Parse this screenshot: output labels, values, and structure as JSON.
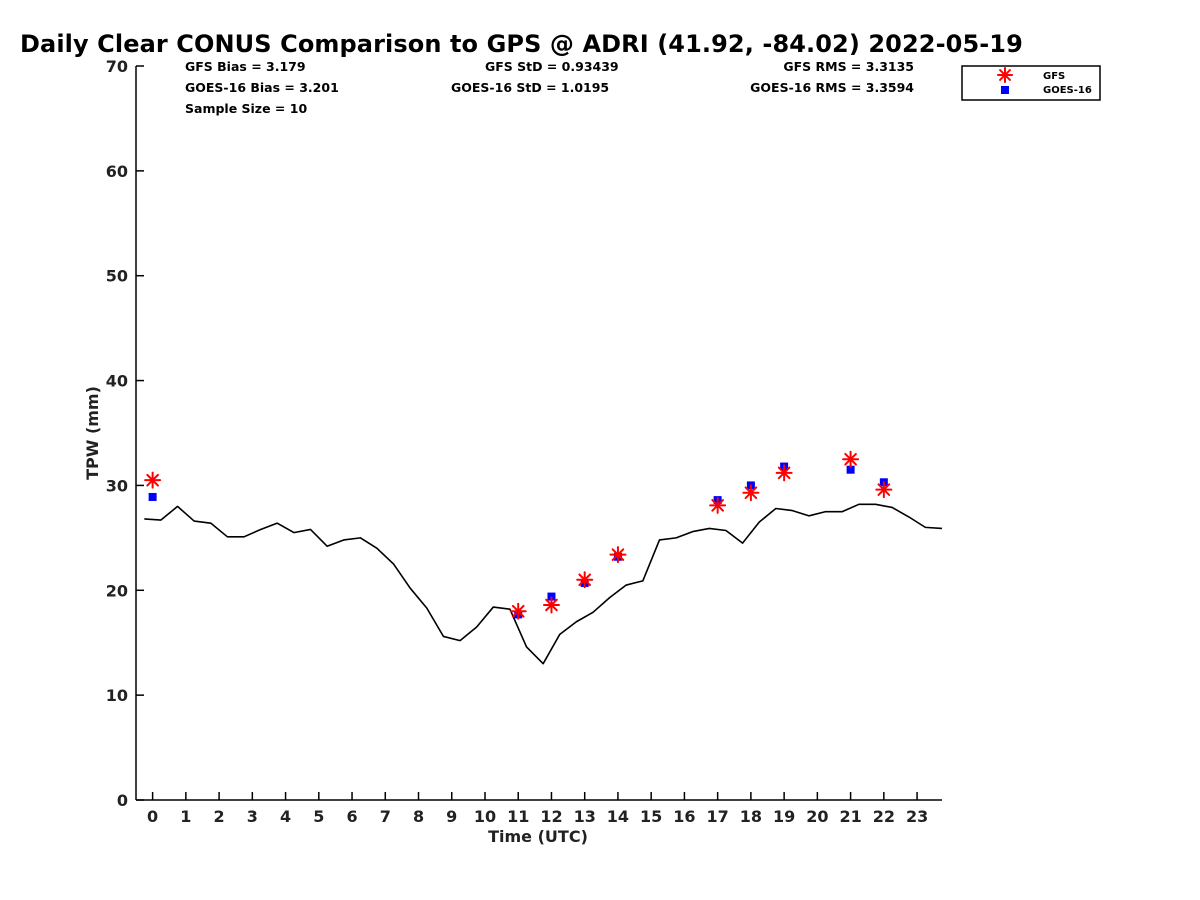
{
  "chart_title": "Daily Clear CONUS Comparison to GPS @ ADRI (41.92, -84.02) 2022-05-19",
  "stats": {
    "gfs_bias": "GFS Bias = 3.179",
    "goes_bias": "GOES-16 Bias = 3.201",
    "sample_size": "Sample Size = 10",
    "gfs_std": "GFS StD = 0.93439",
    "goes_std": "GOES-16 StD = 1.0195",
    "gfs_rms": "GFS RMS = 3.3135",
    "goes_rms": "GOES-16 RMS = 3.3594"
  },
  "legend": {
    "gfs_label": "GFS",
    "goes_label": "GOES-16"
  },
  "colors": {
    "gps_line": "#000000",
    "gfs_marker": "#ff0000",
    "goes_marker": "#0000ff"
  },
  "chart_data": {
    "type": "scatter",
    "title": "Daily Clear CONUS Comparison to GPS @ ADRI (41.92, -84.02) 2022-05-19",
    "xlabel": "Time (UTC)",
    "ylabel": "TPW (mm)",
    "xlim": [
      -0.5,
      23.75
    ],
    "ylim": [
      0,
      70
    ],
    "xticks": [
      0,
      1,
      2,
      3,
      4,
      5,
      6,
      7,
      8,
      9,
      10,
      11,
      12,
      13,
      14,
      15,
      16,
      17,
      18,
      19,
      20,
      21,
      22,
      23
    ],
    "yticks": [
      0,
      10,
      20,
      30,
      40,
      50,
      60,
      70
    ],
    "grid": false,
    "legend_position": "top-right",
    "gps_line": {
      "x": [
        -0.25,
        0.25,
        0.75,
        1.25,
        1.75,
        2.25,
        2.75,
        3.25,
        3.75,
        4.25,
        4.75,
        5.25,
        5.75,
        6.25,
        6.75,
        7.25,
        7.75,
        8.25,
        8.75,
        9.25,
        9.75,
        10.25,
        10.75,
        11.25,
        11.75,
        12.25,
        12.75,
        13.25,
        13.75,
        14.25,
        14.75,
        15.25,
        15.75,
        16.25,
        16.75,
        17.25,
        17.75,
        18.25,
        18.75,
        19.25,
        19.75,
        20.25,
        20.75,
        21.25,
        21.75,
        22.25,
        22.75,
        23.25,
        23.75
      ],
      "y": [
        26.8,
        26.7,
        28.0,
        26.6,
        26.4,
        25.1,
        25.1,
        25.8,
        26.4,
        25.5,
        25.8,
        24.2,
        24.8,
        25.0,
        24.0,
        22.5,
        20.2,
        18.3,
        15.6,
        15.2,
        16.5,
        18.4,
        18.2,
        14.6,
        13.0,
        15.8,
        17.0,
        17.9,
        19.3,
        20.5,
        20.9,
        24.8,
        25.0,
        25.6,
        25.9,
        25.7,
        24.5,
        26.5,
        27.8,
        27.6,
        27.1,
        27.5,
        27.5,
        28.2,
        28.2,
        27.9,
        27.0,
        26.0,
        25.9
      ]
    },
    "series": [
      {
        "name": "GFS",
        "marker": "asterisk",
        "x": [
          0,
          11,
          12,
          13,
          14,
          17,
          18,
          19,
          21,
          22
        ],
        "y": [
          30.5,
          18.0,
          18.6,
          21.0,
          23.4,
          28.1,
          29.3,
          31.2,
          32.5,
          29.6
        ]
      },
      {
        "name": "GOES-16",
        "marker": "square",
        "x": [
          0,
          11,
          12,
          13,
          14,
          17,
          18,
          19,
          21,
          22
        ],
        "y": [
          28.9,
          17.7,
          19.4,
          20.7,
          23.2,
          28.6,
          30.0,
          31.8,
          31.5,
          30.3
        ]
      }
    ]
  }
}
